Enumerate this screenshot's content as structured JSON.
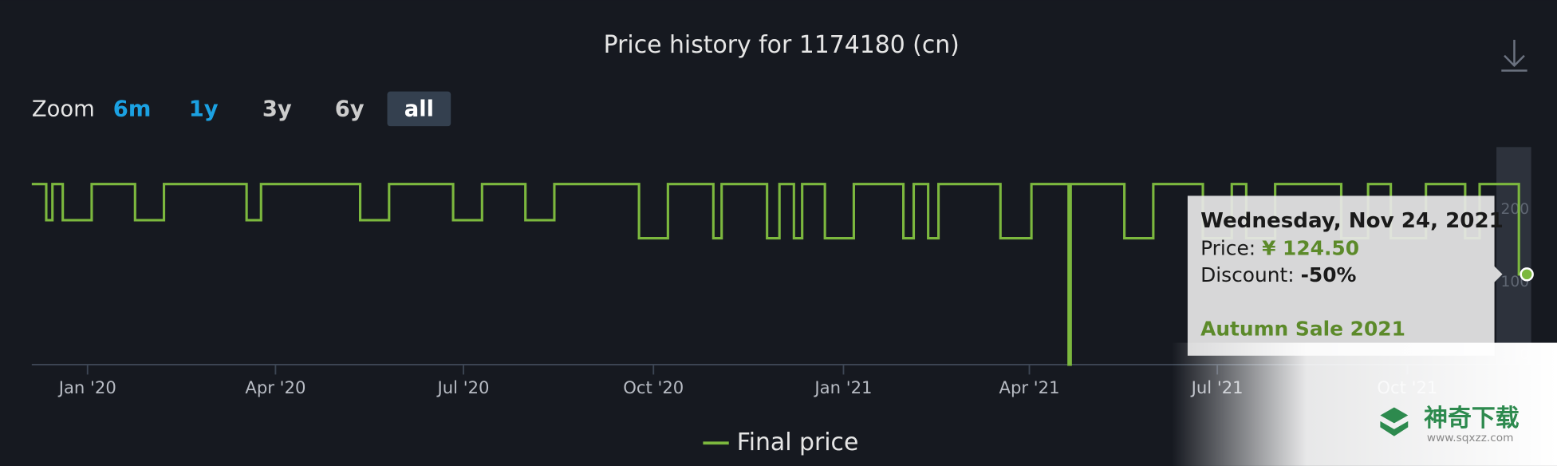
{
  "chart_data": {
    "type": "line",
    "step": true,
    "title": "Price history for 1174180 (cn)",
    "zoom": {
      "label": "Zoom",
      "buttons": [
        "6m",
        "1y",
        "3y",
        "6y",
        "all"
      ]
    },
    "x": [
      "2019-12-05",
      "2019-12-12",
      "2019-12-15",
      "2019-12-20",
      "2020-01-03",
      "2020-01-24",
      "2020-02-07",
      "2020-03-18",
      "2020-03-25",
      "2020-05-12",
      "2020-05-26",
      "2020-06-26",
      "2020-07-10",
      "2020-07-31",
      "2020-08-14",
      "2020-09-24",
      "2020-10-08",
      "2020-10-30",
      "2020-11-03",
      "2020-11-25",
      "2020-12-01",
      "2020-12-08",
      "2020-12-12",
      "2020-12-23",
      "2021-01-06",
      "2021-01-30",
      "2021-02-04",
      "2021-02-11",
      "2021-02-16",
      "2021-03-18",
      "2021-04-02",
      "2021-04-20",
      "2021-04-21",
      "2021-05-17",
      "2021-05-31",
      "2021-06-24",
      "2021-07-08",
      "2021-07-15",
      "2021-07-29",
      "2021-08-30",
      "2021-09-12",
      "2021-09-23",
      "2021-10-10",
      "2021-10-29",
      "2021-11-05",
      "2021-11-24",
      "2021-11-29"
    ],
    "series": [
      {
        "name": "Final price",
        "color": "#7cb83e",
        "values": [
          249,
          199.2,
          249,
          199.2,
          249,
          199.2,
          249,
          199.2,
          249,
          199.2,
          249,
          199.2,
          249,
          199.2,
          249,
          174.3,
          249,
          174.3,
          249,
          174.3,
          249,
          174.3,
          249,
          174.3,
          249,
          174.3,
          249,
          174.3,
          249,
          174.3,
          249,
          0,
          249,
          174.3,
          249,
          174.3,
          249,
          174.3,
          249,
          174.3,
          249,
          174.3,
          249,
          174.3,
          249,
          124.5,
          124.5
        ]
      }
    ],
    "xlim": [
      "2019-12-05",
      "2021-11-29"
    ],
    "xticks": [
      {
        "value": "2020-01-01",
        "label": "Jan '20"
      },
      {
        "value": "2020-04-01",
        "label": "Apr '20"
      },
      {
        "value": "2020-07-01",
        "label": "Jul '20"
      },
      {
        "value": "2020-10-01",
        "label": "Oct '20"
      },
      {
        "value": "2021-01-01",
        "label": "Jan '21"
      },
      {
        "value": "2021-04-01",
        "label": "Apr '21"
      },
      {
        "value": "2021-07-01",
        "label": "Jul '21"
      },
      {
        "value": "2021-10-01",
        "label": "Oct '21"
      }
    ],
    "ylim": [
      0,
      300
    ],
    "yticks": [
      0,
      100,
      200
    ],
    "grid": false,
    "legend": "bottom",
    "tooltip": {
      "date": "Wednesday, Nov 24, 2021",
      "price_label": "Price:",
      "price": "¥ 124.50",
      "discount_label": "Discount:",
      "discount": "-50%",
      "event": "Autumn Sale 2021"
    }
  },
  "watermark": {
    "name": "神奇下载",
    "url": "www.sqxzz.com"
  }
}
